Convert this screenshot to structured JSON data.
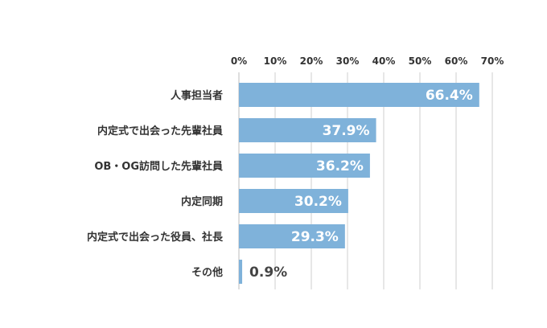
{
  "chart_data": {
    "type": "bar",
    "orientation": "horizontal",
    "title": "",
    "xlabel": "",
    "ylabel": "",
    "categories": [
      "人事担当者",
      "内定式で出会った先輩社員",
      "OB・OG訪問した先輩社員",
      "内定同期",
      "内定式で出会った役員、社長",
      "その他"
    ],
    "values": [
      66.4,
      37.9,
      36.2,
      30.2,
      29.3,
      0.9
    ],
    "value_labels": [
      "66.4%",
      "37.9%",
      "36.2%",
      "30.2%",
      "29.3%",
      "0.9%"
    ],
    "xlim": [
      0,
      70
    ],
    "xticks": [
      0,
      10,
      20,
      30,
      40,
      50,
      60,
      70
    ],
    "xtick_labels": [
      "0%",
      "10%",
      "20%",
      "30%",
      "40%",
      "50%",
      "60%",
      "70%"
    ],
    "grid": true,
    "legend": "none",
    "bar_color": "#7fb2da"
  }
}
